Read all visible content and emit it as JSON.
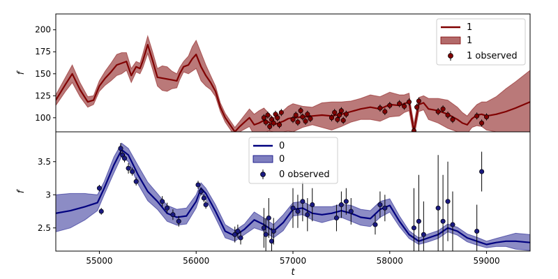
{
  "chart_data": [
    {
      "type": "line",
      "panel": "top",
      "ylabel": "f",
      "xlabel": "",
      "xlim": [
        54550,
        59450
      ],
      "ylim": [
        84,
        218
      ],
      "yticks": [
        100,
        125,
        150,
        175,
        200
      ],
      "xticks": [
        55000,
        56000,
        57000,
        58000,
        59000
      ],
      "legend": {
        "position": "top-right",
        "entries": [
          "1",
          "1",
          "1 observed"
        ]
      },
      "colors": {
        "line": "#800000",
        "band": "#b36a6a",
        "marker": "#800000"
      },
      "series": [
        {
          "name": "1",
          "kind": "mean",
          "x": [
            54550,
            54650,
            54720,
            54800,
            54880,
            54940,
            55000,
            55060,
            55120,
            55180,
            55230,
            55280,
            55330,
            55380,
            55420,
            55450,
            55500,
            55550,
            55600,
            55650,
            55700,
            55750,
            55800,
            55830,
            55870,
            55920,
            55960,
            56000,
            56050,
            56100,
            56150,
            56200,
            56250,
            56300,
            56350,
            56400,
            56450,
            56500,
            56550,
            56600,
            56650,
            56700,
            56750,
            56800,
            56850,
            56900,
            56950,
            57000,
            57100,
            57200,
            57300,
            57400,
            57500,
            57600,
            57700,
            57800,
            57900,
            58000,
            58100,
            58150,
            58200,
            58220,
            58250,
            58300,
            58350,
            58400,
            58500,
            58600,
            58700,
            58750,
            58800,
            58850,
            58900,
            58950,
            59000,
            59100,
            59200,
            59300,
            59450
          ],
          "y": [
            120,
            138,
            150,
            132,
            118,
            120,
            136,
            145,
            152,
            160,
            162,
            164,
            148,
            158,
            156,
            165,
            183,
            165,
            146,
            145,
            144,
            143,
            142,
            150,
            158,
            160,
            167,
            172,
            158,
            148,
            140,
            130,
            112,
            100,
            92,
            84,
            90,
            95,
            100,
            92,
            94,
            97,
            95,
            92,
            94,
            96,
            99,
            100,
            101,
            102,
            103,
            102,
            104,
            107,
            110,
            112,
            110,
            115,
            114,
            116,
            118,
            104,
            85,
            115,
            117,
            110,
            108,
            104,
            98,
            94,
            92,
            99,
            103,
            104,
            102,
            104,
            107,
            111,
            118
          ]
        },
        {
          "name": "1",
          "kind": "band",
          "halfwidth": [
            6,
            8,
            10,
            8,
            6,
            5,
            6,
            8,
            10,
            12,
            12,
            10,
            8,
            6,
            6,
            8,
            10,
            10,
            10,
            14,
            14,
            10,
            8,
            7,
            6,
            10,
            14,
            16,
            16,
            12,
            8,
            6,
            5,
            5,
            5,
            5,
            6,
            8,
            10,
            12,
            14,
            14,
            10,
            8,
            10,
            12,
            14,
            16,
            12,
            10,
            14,
            16,
            14,
            12,
            12,
            14,
            14,
            14,
            12,
            10,
            10,
            8,
            8,
            8,
            8,
            12,
            14,
            16,
            14,
            12,
            10,
            10,
            12,
            14,
            16,
            20,
            26,
            30,
            36
          ]
        },
        {
          "name": "1 observed",
          "kind": "points",
          "x": [
            56700,
            56720,
            56740,
            56760,
            56780,
            56800,
            56820,
            56840,
            56860,
            56880,
            57000,
            57030,
            57050,
            57080,
            57100,
            57130,
            57150,
            57180,
            57400,
            57430,
            57460,
            57480,
            57500,
            57520,
            57550,
            57900,
            57950,
            58000,
            58100,
            58150,
            58200,
            58250,
            58280,
            58300,
            58500,
            58550,
            58600,
            58650,
            58900,
            58950,
            59000
          ],
          "y": [
            100,
            95,
            103,
            90,
            98,
            94,
            104,
            100,
            92,
            106,
            98,
            103,
            95,
            108,
            101,
            96,
            104,
            99,
            100,
            106,
            98,
            103,
            108,
            97,
            104,
            111,
            107,
            114,
            116,
            113,
            118,
            85,
            112,
            119,
            107,
            110,
            103,
            98,
            102,
            94,
            101
          ]
        }
      ]
    },
    {
      "type": "line",
      "panel": "bottom",
      "ylabel": "f",
      "xlabel": "t",
      "xlim": [
        54550,
        59450
      ],
      "ylim": [
        2.15,
        3.95
      ],
      "yticks": [
        2.5,
        3.0,
        3.5
      ],
      "xticks": [
        55000,
        56000,
        57000,
        58000,
        59000
      ],
      "xtick_labels": [
        "55000",
        "56000",
        "57000",
        "58000",
        "59000"
      ],
      "legend": {
        "position": "top-center",
        "entries": [
          "0",
          "0",
          "0 observed"
        ]
      },
      "colors": {
        "line": "#00007f",
        "band": "#7f7fbf",
        "marker": "#1a1a80"
      },
      "series": [
        {
          "name": "0",
          "kind": "mean",
          "x": [
            54550,
            54700,
            54850,
            54980,
            55050,
            55150,
            55230,
            55300,
            55400,
            55500,
            55600,
            55700,
            55800,
            55900,
            56000,
            56050,
            56100,
            56200,
            56300,
            56400,
            56500,
            56600,
            56700,
            56800,
            56900,
            57000,
            57100,
            57200,
            57300,
            57400,
            57500,
            57600,
            57700,
            57800,
            57900,
            58000,
            58100,
            58200,
            58300,
            58400,
            58500,
            58600,
            58700,
            58800,
            58900,
            59000,
            59100,
            59200,
            59300,
            59450
          ],
          "y": [
            2.72,
            2.76,
            2.82,
            2.88,
            3.1,
            3.45,
            3.68,
            3.6,
            3.3,
            3.05,
            2.9,
            2.72,
            2.66,
            2.68,
            2.9,
            3.1,
            3.02,
            2.75,
            2.45,
            2.38,
            2.48,
            2.62,
            2.55,
            2.45,
            2.58,
            2.78,
            2.8,
            2.72,
            2.7,
            2.72,
            2.76,
            2.72,
            2.66,
            2.64,
            2.78,
            2.84,
            2.6,
            2.4,
            2.3,
            2.35,
            2.4,
            2.5,
            2.45,
            2.35,
            2.3,
            2.25,
            2.28,
            2.3,
            2.3,
            2.28
          ]
        },
        {
          "name": "0",
          "kind": "band",
          "halfwidth": [
            0.28,
            0.26,
            0.2,
            0.12,
            0.1,
            0.12,
            0.1,
            0.1,
            0.14,
            0.14,
            0.12,
            0.12,
            0.12,
            0.12,
            0.1,
            0.08,
            0.08,
            0.1,
            0.1,
            0.08,
            0.08,
            0.12,
            0.1,
            0.1,
            0.12,
            0.1,
            0.1,
            0.1,
            0.12,
            0.1,
            0.1,
            0.12,
            0.12,
            0.12,
            0.12,
            0.1,
            0.08,
            0.06,
            0.05,
            0.06,
            0.06,
            0.06,
            0.06,
            0.06,
            0.06,
            0.05,
            0.06,
            0.08,
            0.12,
            0.12
          ]
        },
        {
          "name": "0 observed",
          "kind": "points",
          "x": [
            55000,
            55020,
            55220,
            55240,
            55260,
            55300,
            55340,
            55380,
            55650,
            55700,
            55760,
            55820,
            56020,
            56050,
            56080,
            56100,
            56400,
            56430,
            56460,
            56700,
            56720,
            56750,
            56780,
            56800,
            57000,
            57050,
            57100,
            57150,
            57200,
            57450,
            57500,
            57550,
            57600,
            57850,
            57900,
            57950,
            58250,
            58300,
            58350,
            58500,
            58550,
            58600,
            58650,
            58900,
            58950
          ],
          "y": [
            3.1,
            2.75,
            3.7,
            3.6,
            3.55,
            3.4,
            3.35,
            3.2,
            2.9,
            2.8,
            2.7,
            2.6,
            3.15,
            3.05,
            2.95,
            2.85,
            2.4,
            2.45,
            2.35,
            2.5,
            2.4,
            2.65,
            2.3,
            2.45,
            2.8,
            2.75,
            2.9,
            2.7,
            2.85,
            2.65,
            2.85,
            2.9,
            2.75,
            2.55,
            2.85,
            2.8,
            2.5,
            2.6,
            2.4,
            2.8,
            2.6,
            2.9,
            2.55,
            2.45,
            3.35
          ],
          "err": [
            0.05,
            0.05,
            0.08,
            0.06,
            0.06,
            0.08,
            0.06,
            0.06,
            0.08,
            0.08,
            0.08,
            0.08,
            0.06,
            0.06,
            0.06,
            0.06,
            0.12,
            0.1,
            0.1,
            0.3,
            0.25,
            0.3,
            0.2,
            0.2,
            0.3,
            0.25,
            0.3,
            0.25,
            0.25,
            0.2,
            0.2,
            0.2,
            0.2,
            0.15,
            0.2,
            0.2,
            0.6,
            0.7,
            0.5,
            0.8,
            0.7,
            0.6,
            0.5,
            0.4,
            0.3
          ]
        }
      ]
    }
  ]
}
